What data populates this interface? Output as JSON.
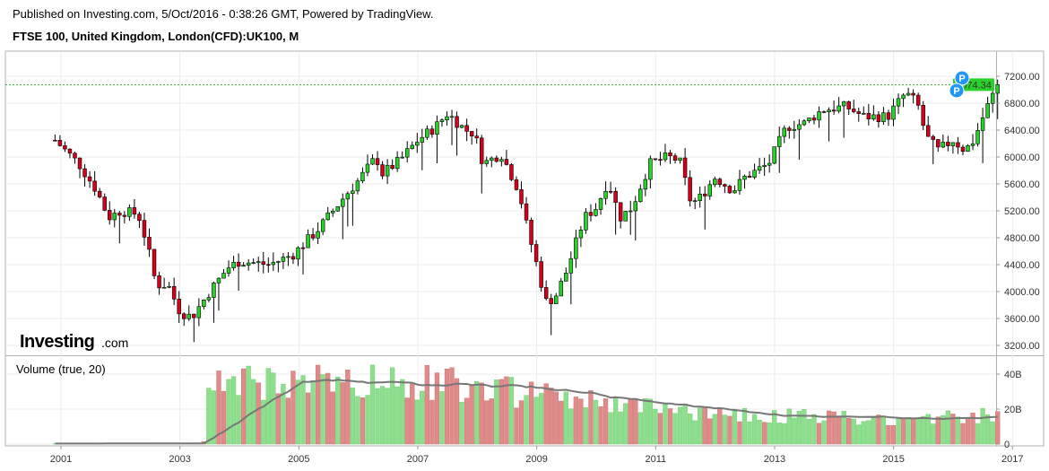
{
  "header": {
    "published": "Published on Investing.com, 5/Oct/2016 - 0:38:26 GMT, Powered by TradingView.",
    "title": "FTSE 100, United Kingdom, London(CFD):UK100, M"
  },
  "logo": {
    "brand": "Investing",
    "suffix": ".com"
  },
  "chart_data": [
    {
      "type": "candlestick",
      "title": "FTSE 100, United Kingdom, London(CFD):UK100, M",
      "interval": "monthly",
      "x_tick_labels": [
        "2001",
        "2003",
        "2005",
        "2007",
        "2009",
        "2011",
        "2013",
        "2015",
        "2017"
      ],
      "y_tick_labels": [
        "3200.00",
        "3600.00",
        "4000.00",
        "4400.00",
        "4800.00",
        "5200.00",
        "5600.00",
        "6000.00",
        "6400.00",
        "6800.00",
        "7200.00"
      ],
      "ylim": [
        3000,
        7450
      ],
      "last_price": 7074.34,
      "last_price_label": "7074.34",
      "markers": [
        "P",
        "P"
      ],
      "colors": {
        "up": "#2bd12b",
        "down": "#d6001c",
        "last_price_line": "#22aa22",
        "last_price_badge": "#2bd12b",
        "marker": "#2196f3"
      },
      "anchors": [
        [
          2000.9,
          6250
        ],
        [
          2001.3,
          5900
        ],
        [
          2001.6,
          5500
        ],
        [
          2001.8,
          5100
        ],
        [
          2002.0,
          5200
        ],
        [
          2002.3,
          5150
        ],
        [
          2002.45,
          4700
        ],
        [
          2002.6,
          4100
        ],
        [
          2002.8,
          4100
        ],
        [
          2003.0,
          3700
        ],
        [
          2003.2,
          3620
        ],
        [
          2003.5,
          4000
        ],
        [
          2003.8,
          4350
        ],
        [
          2004.0,
          4450
        ],
        [
          2004.5,
          4400
        ],
        [
          2004.9,
          4550
        ],
        [
          2005.3,
          4900
        ],
        [
          2005.8,
          5450
        ],
        [
          2006.0,
          5650
        ],
        [
          2006.3,
          6000
        ],
        [
          2006.4,
          5750
        ],
        [
          2006.7,
          5950
        ],
        [
          2007.0,
          6250
        ],
        [
          2007.3,
          6450
        ],
        [
          2007.5,
          6650
        ],
        [
          2007.8,
          6400
        ],
        [
          2007.95,
          6350
        ],
        [
          2008.1,
          5900
        ],
        [
          2008.4,
          6050
        ],
        [
          2008.7,
          5500
        ],
        [
          2008.85,
          4900
        ],
        [
          2009.0,
          4400
        ],
        [
          2009.15,
          3850
        ],
        [
          2009.3,
          3900
        ],
        [
          2009.5,
          4300
        ],
        [
          2009.8,
          5100
        ],
        [
          2010.0,
          5250
        ],
        [
          2010.2,
          5650
        ],
        [
          2010.4,
          5100
        ],
        [
          2010.6,
          5250
        ],
        [
          2010.9,
          5900
        ],
        [
          2011.2,
          6000
        ],
        [
          2011.4,
          5950
        ],
        [
          2011.6,
          5300
        ],
        [
          2011.75,
          5400
        ],
        [
          2012.0,
          5700
        ],
        [
          2012.3,
          5500
        ],
        [
          2012.5,
          5700
        ],
        [
          2012.9,
          5900
        ],
        [
          2013.2,
          6450
        ],
        [
          2013.5,
          6500
        ],
        [
          2013.8,
          6700
        ],
        [
          2014.2,
          6750
        ],
        [
          2014.5,
          6600
        ],
        [
          2014.9,
          6600
        ],
        [
          2015.2,
          6950
        ],
        [
          2015.4,
          6800
        ],
        [
          2015.55,
          6300
        ],
        [
          2015.75,
          6100
        ],
        [
          2016.0,
          6250
        ],
        [
          2016.2,
          6100
        ],
        [
          2016.35,
          6250
        ],
        [
          2016.55,
          6700
        ],
        [
          2016.75,
          7074
        ]
      ]
    },
    {
      "type": "bar",
      "title": "Volume (true, 20)",
      "y_tick_labels": [
        "0",
        "20B",
        "40B"
      ],
      "ylim": [
        0,
        45
      ],
      "units": "B",
      "moving_average_period": 20,
      "volume_anchors": [
        [
          2000.9,
          0.3
        ],
        [
          2003.4,
          0.5
        ],
        [
          2003.5,
          36
        ],
        [
          2004.5,
          34
        ],
        [
          2005.5,
          35
        ],
        [
          2006.5,
          36
        ],
        [
          2007.5,
          34
        ],
        [
          2008.5,
          30
        ],
        [
          2009.5,
          26
        ],
        [
          2010.5,
          22
        ],
        [
          2011.5,
          19
        ],
        [
          2012.5,
          17
        ],
        [
          2013.5,
          16
        ],
        [
          2014.5,
          14
        ],
        [
          2015.5,
          15
        ],
        [
          2016.75,
          17
        ]
      ]
    }
  ]
}
